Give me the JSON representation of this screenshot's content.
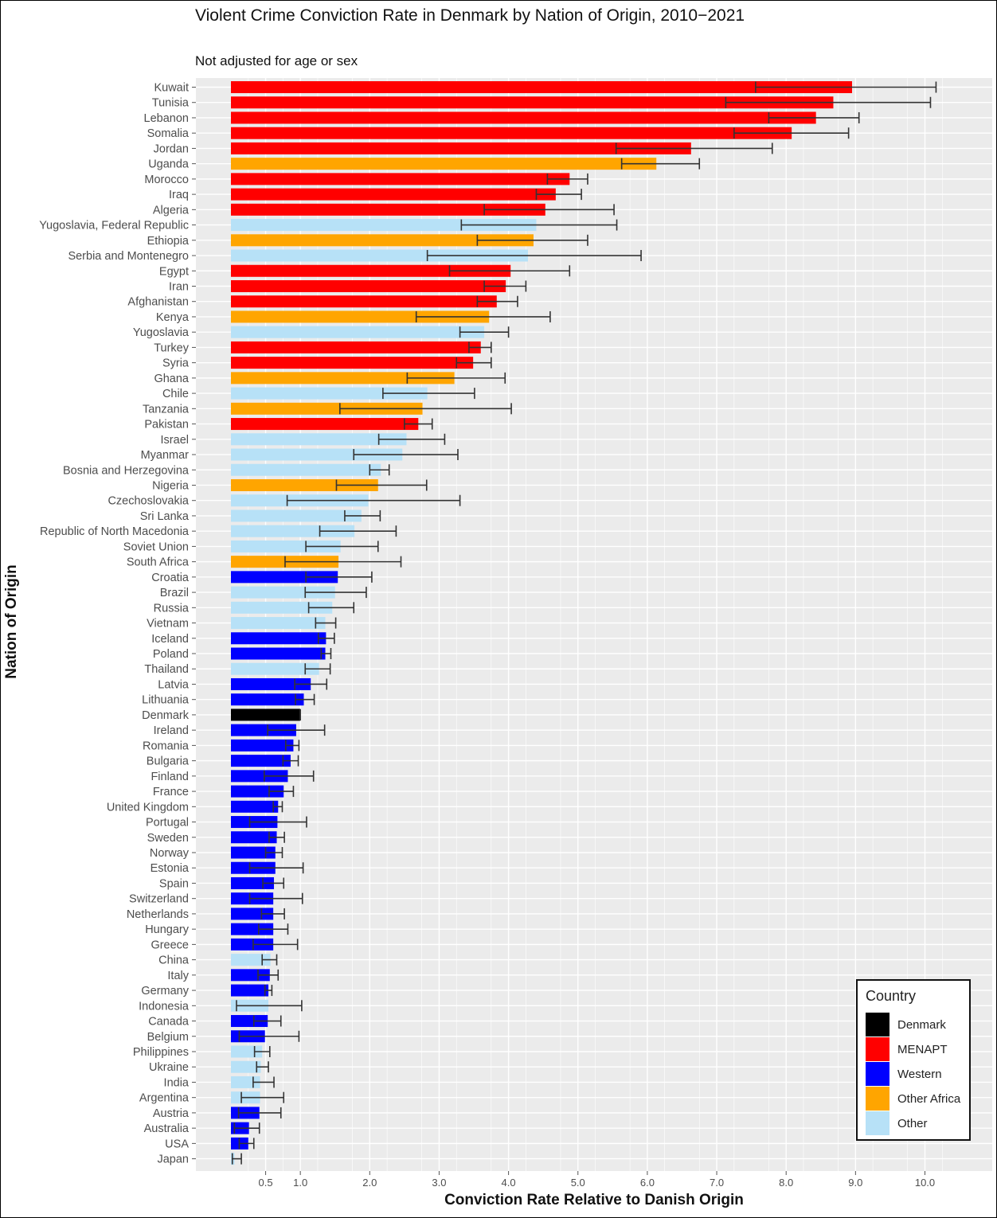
{
  "page": {
    "title": "Violent Crime Conviction Rate in Denmark by Nation of Origin, 2010−2021",
    "subtitle": "Not adjusted for age or sex"
  },
  "colors": {
    "Denmark": "#000000",
    "MENAPT": "#ff0000",
    "Western": "#0000ff",
    "Other Africa": "#ffa500",
    "Other": "#b7e1f7",
    "panel": "#ebebeb",
    "grid": "#ffffff",
    "error": "#333333"
  },
  "legend": {
    "title": "Country",
    "items": [
      {
        "label": "Denmark",
        "group": "Denmark"
      },
      {
        "label": "MENAPT",
        "group": "MENAPT"
      },
      {
        "label": "Western",
        "group": "Western"
      },
      {
        "label": "Other Africa",
        "group": "Other Africa"
      },
      {
        "label": "Other",
        "group": "Other"
      }
    ]
  },
  "chart_data": {
    "type": "bar",
    "orientation": "horizontal",
    "title": "Violent Crime Conviction Rate in Denmark by Nation of Origin, 2010−2021",
    "subtitle": "Not adjusted for age or sex",
    "xlabel": "Conviction Rate Relative to Danish Origin",
    "ylabel": "Nation of Origin",
    "xlim": [
      0,
      10.5
    ],
    "xticks": [
      0.5,
      1.0,
      2.0,
      3.0,
      4.0,
      5.0,
      6.0,
      7.0,
      8.0,
      9.0,
      10.0
    ],
    "xtick_labels": [
      "0.5",
      "1.0",
      "2.0",
      "3.0",
      "4.0",
      "5.0",
      "6.0",
      "7.0",
      "8.0",
      "9.0",
      "10.0"
    ],
    "legend_position": "bottom-right",
    "bars": [
      {
        "country": "Kuwait",
        "group": "MENAPT",
        "value": 8.95,
        "lo": 7.56,
        "hi": 10.16
      },
      {
        "country": "Tunisia",
        "group": "MENAPT",
        "value": 8.68,
        "lo": 7.13,
        "hi": 10.08
      },
      {
        "country": "Lebanon",
        "group": "MENAPT",
        "value": 8.43,
        "lo": 7.75,
        "hi": 9.05
      },
      {
        "country": "Somalia",
        "group": "MENAPT",
        "value": 8.08,
        "lo": 7.25,
        "hi": 8.9
      },
      {
        "country": "Jordan",
        "group": "MENAPT",
        "value": 6.63,
        "lo": 5.55,
        "hi": 7.8
      },
      {
        "country": "Uganda",
        "group": "Other Africa",
        "value": 6.13,
        "lo": 5.63,
        "hi": 6.75
      },
      {
        "country": "Morocco",
        "group": "MENAPT",
        "value": 4.88,
        "lo": 4.56,
        "hi": 5.14
      },
      {
        "country": "Iraq",
        "group": "MENAPT",
        "value": 4.68,
        "lo": 4.4,
        "hi": 5.05
      },
      {
        "country": "Algeria",
        "group": "MENAPT",
        "value": 4.53,
        "lo": 3.65,
        "hi": 5.52
      },
      {
        "country": "Yugoslavia, Federal Republic",
        "group": "Other",
        "value": 4.4,
        "lo": 3.32,
        "hi": 5.56
      },
      {
        "country": "Ethiopia",
        "group": "Other Africa",
        "value": 4.36,
        "lo": 3.55,
        "hi": 5.14
      },
      {
        "country": "Serbia and Montenegro",
        "group": "Other",
        "value": 4.28,
        "lo": 2.83,
        "hi": 5.91
      },
      {
        "country": "Egypt",
        "group": "MENAPT",
        "value": 4.03,
        "lo": 3.15,
        "hi": 4.88
      },
      {
        "country": "Iran",
        "group": "MENAPT",
        "value": 3.96,
        "lo": 3.65,
        "hi": 4.25
      },
      {
        "country": "Afghanistan",
        "group": "MENAPT",
        "value": 3.83,
        "lo": 3.55,
        "hi": 4.13
      },
      {
        "country": "Kenya",
        "group": "Other Africa",
        "value": 3.72,
        "lo": 2.67,
        "hi": 4.6
      },
      {
        "country": "Yugoslavia",
        "group": "Other",
        "value": 3.65,
        "lo": 3.3,
        "hi": 4.0
      },
      {
        "country": "Turkey",
        "group": "MENAPT",
        "value": 3.6,
        "lo": 3.43,
        "hi": 3.75
      },
      {
        "country": "Syria",
        "group": "MENAPT",
        "value": 3.49,
        "lo": 3.25,
        "hi": 3.75
      },
      {
        "country": "Ghana",
        "group": "Other Africa",
        "value": 3.22,
        "lo": 2.54,
        "hi": 3.95
      },
      {
        "country": "Chile",
        "group": "Other",
        "value": 2.83,
        "lo": 2.19,
        "hi": 3.51
      },
      {
        "country": "Tanzania",
        "group": "Other Africa",
        "value": 2.76,
        "lo": 1.57,
        "hi": 4.04
      },
      {
        "country": "Pakistan",
        "group": "MENAPT",
        "value": 2.7,
        "lo": 2.5,
        "hi": 2.9
      },
      {
        "country": "Israel",
        "group": "Other",
        "value": 2.53,
        "lo": 2.13,
        "hi": 3.08
      },
      {
        "country": "Myanmar",
        "group": "Other",
        "value": 2.47,
        "lo": 1.77,
        "hi": 3.27
      },
      {
        "country": "Bosnia and Herzegovina",
        "group": "Other",
        "value": 2.16,
        "lo": 2.0,
        "hi": 2.28
      },
      {
        "country": "Nigeria",
        "group": "Other Africa",
        "value": 2.12,
        "lo": 1.52,
        "hi": 2.82
      },
      {
        "country": "Czechoslovakia",
        "group": "Other",
        "value": 1.98,
        "lo": 0.81,
        "hi": 3.3
      },
      {
        "country": "Sri Lanka",
        "group": "Other",
        "value": 1.88,
        "lo": 1.64,
        "hi": 2.15
      },
      {
        "country": "Republic of North Macedonia",
        "group": "Other",
        "value": 1.78,
        "lo": 1.28,
        "hi": 2.38
      },
      {
        "country": "Soviet Union",
        "group": "Other",
        "value": 1.58,
        "lo": 1.08,
        "hi": 2.12
      },
      {
        "country": "South Africa",
        "group": "Other Africa",
        "value": 1.55,
        "lo": 0.78,
        "hi": 2.45
      },
      {
        "country": "Croatia",
        "group": "Western",
        "value": 1.54,
        "lo": 1.08,
        "hi": 2.03
      },
      {
        "country": "Brazil",
        "group": "Other",
        "value": 1.5,
        "lo": 1.07,
        "hi": 1.95
      },
      {
        "country": "Russia",
        "group": "Other",
        "value": 1.46,
        "lo": 1.12,
        "hi": 1.77
      },
      {
        "country": "Vietnam",
        "group": "Other",
        "value": 1.36,
        "lo": 1.22,
        "hi": 1.51
      },
      {
        "country": "Iceland",
        "group": "Western",
        "value": 1.37,
        "lo": 1.26,
        "hi": 1.49
      },
      {
        "country": "Poland",
        "group": "Western",
        "value": 1.36,
        "lo": 1.3,
        "hi": 1.44
      },
      {
        "country": "Thailand",
        "group": "Other",
        "value": 1.27,
        "lo": 1.07,
        "hi": 1.43
      },
      {
        "country": "Latvia",
        "group": "Western",
        "value": 1.15,
        "lo": 0.92,
        "hi": 1.38
      },
      {
        "country": "Lithuania",
        "group": "Western",
        "value": 1.05,
        "lo": 0.93,
        "hi": 1.2
      },
      {
        "country": "Denmark",
        "group": "Denmark",
        "value": 1.0,
        "lo": 1.0,
        "hi": 1.0
      },
      {
        "country": "Ireland",
        "group": "Western",
        "value": 0.94,
        "lo": 0.53,
        "hi": 1.35
      },
      {
        "country": "Romania",
        "group": "Western",
        "value": 0.9,
        "lo": 0.79,
        "hi": 0.98
      },
      {
        "country": "Bulgaria",
        "group": "Western",
        "value": 0.86,
        "lo": 0.75,
        "hi": 0.97
      },
      {
        "country": "Finland",
        "group": "Western",
        "value": 0.82,
        "lo": 0.48,
        "hi": 1.19
      },
      {
        "country": "France",
        "group": "Western",
        "value": 0.76,
        "lo": 0.55,
        "hi": 0.9
      },
      {
        "country": "United Kingdom",
        "group": "Western",
        "value": 0.68,
        "lo": 0.61,
        "hi": 0.74
      },
      {
        "country": "Portugal",
        "group": "Western",
        "value": 0.67,
        "lo": 0.27,
        "hi": 1.09
      },
      {
        "country": "Sweden",
        "group": "Western",
        "value": 0.66,
        "lo": 0.55,
        "hi": 0.77
      },
      {
        "country": "Norway",
        "group": "Western",
        "value": 0.64,
        "lo": 0.5,
        "hi": 0.74
      },
      {
        "country": "Estonia",
        "group": "Western",
        "value": 0.64,
        "lo": 0.27,
        "hi": 1.04
      },
      {
        "country": "Spain",
        "group": "Western",
        "value": 0.62,
        "lo": 0.46,
        "hi": 0.76
      },
      {
        "country": "Switzerland",
        "group": "Western",
        "value": 0.61,
        "lo": 0.27,
        "hi": 1.03
      },
      {
        "country": "Netherlands",
        "group": "Western",
        "value": 0.61,
        "lo": 0.44,
        "hi": 0.77
      },
      {
        "country": "Hungary",
        "group": "Western",
        "value": 0.61,
        "lo": 0.4,
        "hi": 0.82
      },
      {
        "country": "Greece",
        "group": "Western",
        "value": 0.61,
        "lo": 0.32,
        "hi": 0.96
      },
      {
        "country": "China",
        "group": "Other",
        "value": 0.57,
        "lo": 0.45,
        "hi": 0.66
      },
      {
        "country": "Italy",
        "group": "Western",
        "value": 0.56,
        "lo": 0.39,
        "hi": 0.68
      },
      {
        "country": "Germany",
        "group": "Western",
        "value": 0.54,
        "lo": 0.49,
        "hi": 0.59
      },
      {
        "country": "Indonesia",
        "group": "Other",
        "value": 0.54,
        "lo": 0.08,
        "hi": 1.02
      },
      {
        "country": "Canada",
        "group": "Western",
        "value": 0.53,
        "lo": 0.33,
        "hi": 0.72
      },
      {
        "country": "Belgium",
        "group": "Western",
        "value": 0.49,
        "lo": 0.12,
        "hi": 0.98
      },
      {
        "country": "Philippines",
        "group": "Other",
        "value": 0.45,
        "lo": 0.34,
        "hi": 0.56
      },
      {
        "country": "Ukraine",
        "group": "Other",
        "value": 0.43,
        "lo": 0.37,
        "hi": 0.54
      },
      {
        "country": "India",
        "group": "Other",
        "value": 0.42,
        "lo": 0.32,
        "hi": 0.62
      },
      {
        "country": "Argentina",
        "group": "Other",
        "value": 0.42,
        "lo": 0.15,
        "hi": 0.76
      },
      {
        "country": "Austria",
        "group": "Western",
        "value": 0.41,
        "lo": 0.11,
        "hi": 0.72
      },
      {
        "country": "Australia",
        "group": "Western",
        "value": 0.26,
        "lo": 0.05,
        "hi": 0.41
      },
      {
        "country": "USA",
        "group": "Western",
        "value": 0.25,
        "lo": 0.12,
        "hi": 0.33
      },
      {
        "country": "Japan",
        "group": "Other",
        "value": 0.05,
        "lo": 0.02,
        "hi": 0.15
      }
    ]
  }
}
